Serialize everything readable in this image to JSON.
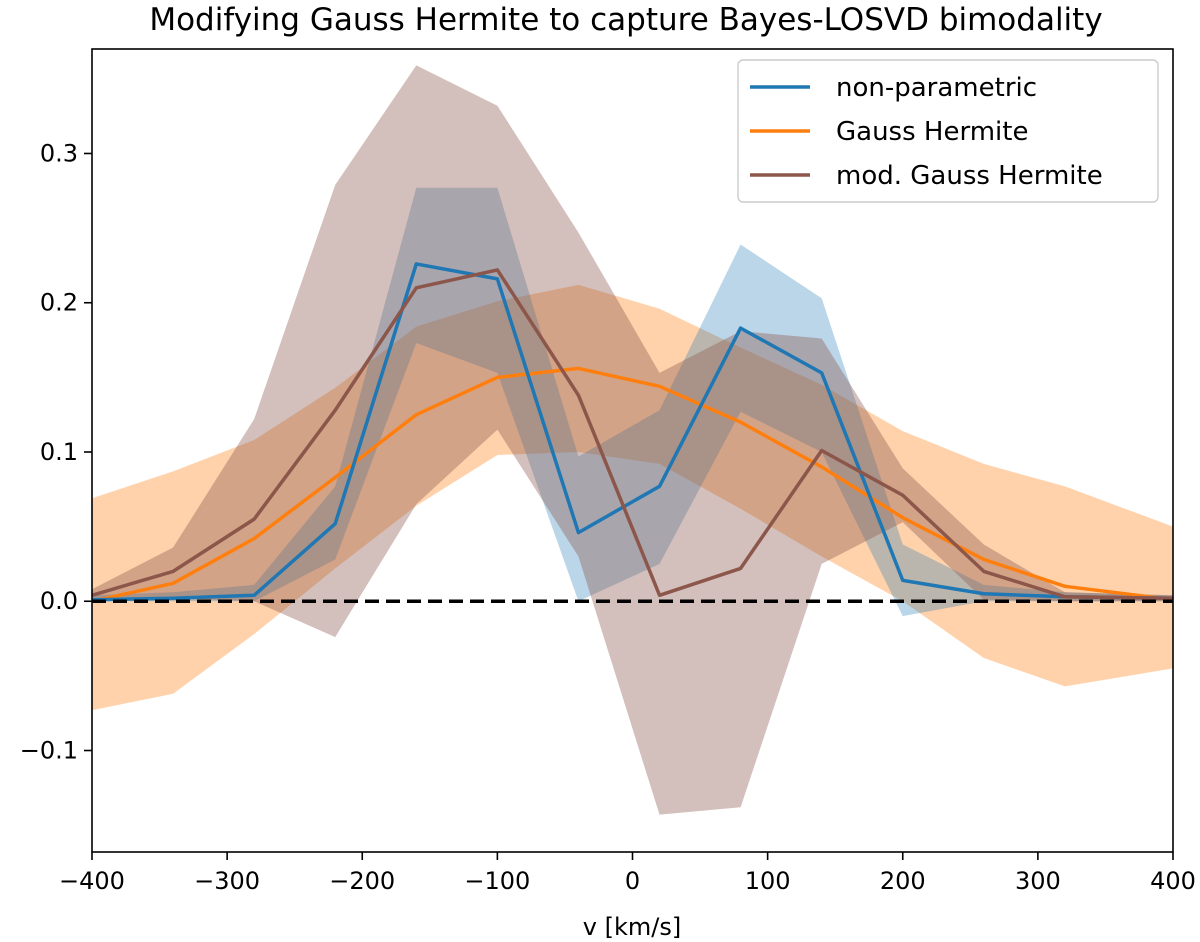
{
  "chart_data": {
    "type": "line",
    "title": "Modifying Gauss Hermite to capture Bayes-LOSVD bimodality",
    "xlabel": "v [km/s]",
    "ylabel": "",
    "xlim": [
      -400,
      400
    ],
    "ylim": [
      -0.168,
      0.37
    ],
    "x_ticks": [
      -400,
      -300,
      -200,
      -100,
      0,
      100,
      200,
      300,
      400
    ],
    "x_tick_labels": [
      "−400",
      "−300",
      "−200",
      "−100",
      "0",
      "100",
      "200",
      "300",
      "400"
    ],
    "y_ticks": [
      -0.1,
      0.0,
      0.1,
      0.2,
      0.3
    ],
    "y_tick_labels": [
      "−0.1",
      "0.0",
      "0.1",
      "0.2",
      "0.3"
    ],
    "grid": false,
    "legend_position": "top-right",
    "reference_line": {
      "y": 0.0,
      "style": "dashed",
      "color": "#000000"
    },
    "series": [
      {
        "name": "Gauss Hermite",
        "color": "#ff7f0e",
        "band_opacity": 0.35,
        "x": [
          -400,
          -340,
          -280,
          -220,
          -160,
          -100,
          -40,
          20,
          80,
          140,
          200,
          260,
          320,
          400
        ],
        "y": [
          0.0,
          0.012,
          0.042,
          0.083,
          0.125,
          0.15,
          0.156,
          0.144,
          0.12,
          0.09,
          0.056,
          0.028,
          0.01,
          0.001
        ],
        "lower": [
          -0.073,
          -0.062,
          -0.022,
          0.022,
          0.064,
          0.098,
          0.1,
          0.092,
          0.062,
          0.03,
          0.0,
          -0.038,
          -0.057,
          -0.045
        ],
        "upper": [
          0.069,
          0.087,
          0.108,
          0.143,
          0.184,
          0.201,
          0.212,
          0.196,
          0.17,
          0.145,
          0.114,
          0.092,
          0.077,
          0.05
        ]
      },
      {
        "name": "non-parametric",
        "color": "#1f77b4",
        "band_opacity": 0.3,
        "x": [
          -400,
          -340,
          -280,
          -220,
          -160,
          -100,
          -40,
          20,
          80,
          140,
          200,
          260,
          320,
          400
        ],
        "y": [
          0.001,
          0.002,
          0.004,
          0.052,
          0.226,
          0.216,
          0.046,
          0.077,
          0.183,
          0.153,
          0.014,
          0.005,
          0.003,
          0.002
        ],
        "lower": [
          0.0,
          0.0,
          0.0,
          0.028,
          0.173,
          0.153,
          0.0,
          0.025,
          0.127,
          0.1,
          -0.01,
          0.0,
          0.0,
          0.0
        ],
        "upper": [
          0.004,
          0.006,
          0.011,
          0.077,
          0.277,
          0.277,
          0.097,
          0.128,
          0.239,
          0.203,
          0.038,
          0.011,
          0.006,
          0.004
        ]
      },
      {
        "name": "mod. Gauss Hermite",
        "color": "#8c564b",
        "band_opacity": 0.38,
        "x": [
          -400,
          -340,
          -280,
          -220,
          -160,
          -100,
          -40,
          20,
          80,
          140,
          200,
          260,
          320,
          400
        ],
        "y": [
          0.004,
          0.02,
          0.055,
          0.128,
          0.21,
          0.222,
          0.138,
          0.004,
          0.022,
          0.101,
          0.071,
          0.02,
          0.003,
          0.002
        ],
        "lower": [
          0.0,
          0.002,
          0.0,
          -0.024,
          0.065,
          0.115,
          0.03,
          -0.143,
          -0.138,
          0.025,
          0.053,
          0.001,
          0.0,
          0.0
        ],
        "upper": [
          0.008,
          0.036,
          0.122,
          0.279,
          0.359,
          0.332,
          0.247,
          0.153,
          0.181,
          0.176,
          0.089,
          0.038,
          0.006,
          0.004
        ]
      }
    ],
    "legend": [
      {
        "label": "non-parametric",
        "color": "#1f77b4"
      },
      {
        "label": "Gauss Hermite",
        "color": "#ff7f0e"
      },
      {
        "label": "mod. Gauss Hermite",
        "color": "#8c564b"
      }
    ]
  }
}
